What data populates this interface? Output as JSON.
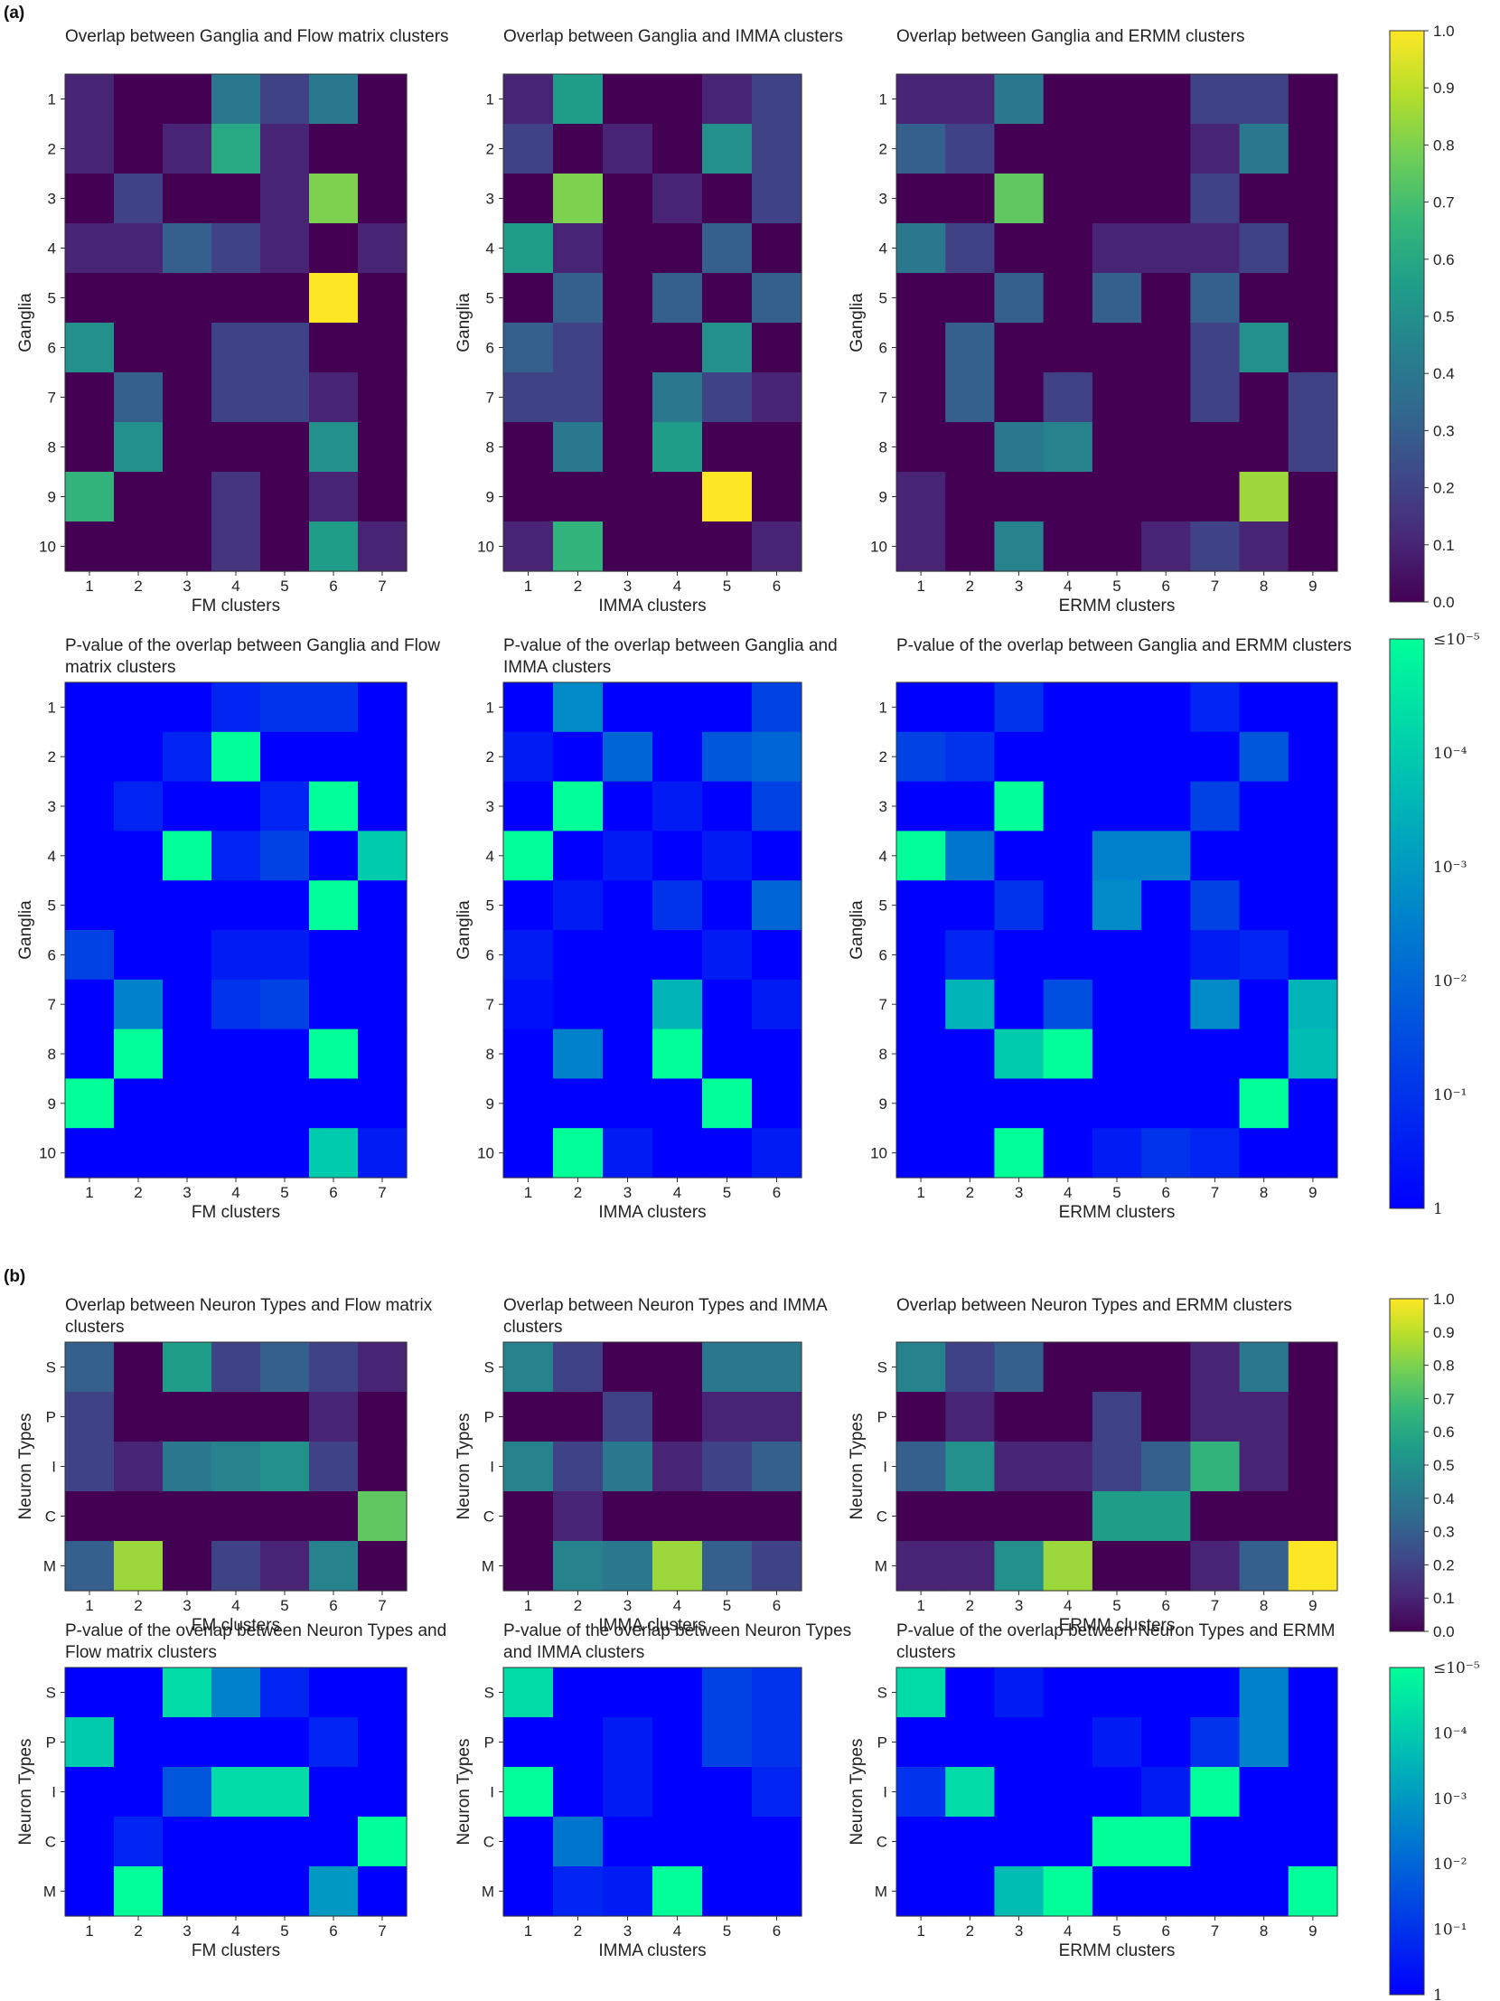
{
  "panel_labels": [
    "(a)",
    "(b)"
  ],
  "colors": {
    "viridis": [
      "#440154",
      "#482878",
      "#3e4989",
      "#31688e",
      "#26828e",
      "#1f9e89",
      "#35b779",
      "#6ece58",
      "#b5de2b",
      "#fde725"
    ],
    "pvalue": [
      "#0000ff",
      "#00ff99"
    ]
  },
  "colorbars": [
    {
      "type": "linear",
      "labels": [
        "1.0",
        "0.9",
        "0.8",
        "0.7",
        "0.6",
        "0.5",
        "0.4",
        "0.3",
        "0.2",
        "0.1",
        "0.0"
      ]
    },
    {
      "type": "pvalue",
      "labels": [
        "≤10⁻⁵",
        "10⁻⁴",
        "10⁻³",
        "10⁻²",
        "10⁻¹",
        "1"
      ]
    },
    {
      "type": "linear",
      "labels": [
        "1.0",
        "0.9",
        "0.8",
        "0.7",
        "0.6",
        "0.5",
        "0.4",
        "0.3",
        "0.2",
        "0.1",
        "0.0"
      ]
    },
    {
      "type": "pvalue",
      "labels": [
        "≤10⁻⁵",
        "10⁻⁴",
        "10⁻³",
        "10⁻²",
        "10⁻¹",
        "1"
      ]
    }
  ],
  "chart_data": [
    {
      "type": "heatmap",
      "title": "Overlap between Ganglia and Flow matrix clusters",
      "xlabel": "FM clusters",
      "ylabel": "Ganglia",
      "colormap": "viridis",
      "vlim": [
        0,
        1
      ],
      "x": [
        "1",
        "2",
        "3",
        "4",
        "5",
        "6",
        "7"
      ],
      "y": [
        "1",
        "2",
        "3",
        "4",
        "5",
        "6",
        "7",
        "8",
        "9",
        "10"
      ],
      "values": [
        [
          0.1,
          0,
          0,
          0.4,
          0.2,
          0.4,
          0
        ],
        [
          0.1,
          0,
          0.1,
          0.6,
          0.1,
          0,
          0
        ],
        [
          0,
          0.2,
          0,
          0,
          0.1,
          0.8,
          0
        ],
        [
          0.1,
          0.1,
          0.3,
          0.2,
          0.1,
          0,
          0.1
        ],
        [
          0,
          0,
          0,
          0,
          0,
          1.0,
          0
        ],
        [
          0.5,
          0,
          0,
          0.2,
          0.2,
          0,
          0
        ],
        [
          0,
          0.3,
          0,
          0.2,
          0.2,
          0.1,
          0
        ],
        [
          0,
          0.5,
          0,
          0,
          0,
          0.5,
          0
        ],
        [
          0.65,
          0,
          0,
          0.15,
          0,
          0.1,
          0
        ],
        [
          0,
          0,
          0,
          0.15,
          0,
          0.55,
          0.1
        ]
      ]
    },
    {
      "type": "heatmap",
      "title": "Overlap between Ganglia and IMMA clusters",
      "xlabel": "IMMA clusters",
      "ylabel": "Ganglia",
      "colormap": "viridis",
      "vlim": [
        0,
        1
      ],
      "x": [
        "1",
        "2",
        "3",
        "4",
        "5",
        "6"
      ],
      "y": [
        "1",
        "2",
        "3",
        "4",
        "5",
        "6",
        "7",
        "8",
        "9",
        "10"
      ],
      "values": [
        [
          0.1,
          0.55,
          0,
          0,
          0.1,
          0.2
        ],
        [
          0.2,
          0,
          0.1,
          0,
          0.5,
          0.2
        ],
        [
          0,
          0.8,
          0,
          0.1,
          0,
          0.2
        ],
        [
          0.55,
          0.1,
          0,
          0,
          0.3,
          0
        ],
        [
          0,
          0.3,
          0,
          0.3,
          0,
          0.3
        ],
        [
          0.3,
          0.2,
          0,
          0,
          0.5,
          0
        ],
        [
          0.2,
          0.2,
          0,
          0.4,
          0.2,
          0.1
        ],
        [
          0,
          0.4,
          0,
          0.55,
          0,
          0
        ],
        [
          0,
          0,
          0,
          0,
          1.0,
          0
        ],
        [
          0.1,
          0.65,
          0,
          0,
          0,
          0.1
        ]
      ]
    },
    {
      "type": "heatmap",
      "title": "Overlap between Ganglia and ERMM clusters",
      "xlabel": "ERMM clusters",
      "ylabel": "Ganglia",
      "colormap": "viridis",
      "vlim": [
        0,
        1
      ],
      "x": [
        "1",
        "2",
        "3",
        "4",
        "5",
        "6",
        "7",
        "8",
        "9"
      ],
      "y": [
        "1",
        "2",
        "3",
        "4",
        "5",
        "6",
        "7",
        "8",
        "9",
        "10"
      ],
      "values": [
        [
          0.1,
          0.1,
          0.4,
          0,
          0,
          0,
          0.2,
          0.2,
          0
        ],
        [
          0.3,
          0.2,
          0,
          0,
          0,
          0,
          0.1,
          0.4,
          0
        ],
        [
          0,
          0,
          0.75,
          0,
          0,
          0,
          0.2,
          0,
          0
        ],
        [
          0.4,
          0.2,
          0,
          0,
          0.1,
          0.1,
          0.1,
          0.2,
          0
        ],
        [
          0,
          0,
          0.3,
          0,
          0.3,
          0,
          0.3,
          0,
          0
        ],
        [
          0,
          0.3,
          0,
          0,
          0,
          0,
          0.2,
          0.5,
          0
        ],
        [
          0,
          0.3,
          0,
          0.2,
          0,
          0,
          0.2,
          0,
          0.2
        ],
        [
          0,
          0,
          0.4,
          0.45,
          0,
          0,
          0,
          0,
          0.2
        ],
        [
          0.1,
          0,
          0,
          0,
          0,
          0,
          0,
          0.85,
          0
        ],
        [
          0.1,
          0,
          0.45,
          0,
          0,
          0.1,
          0.2,
          0.1,
          0
        ]
      ]
    },
    {
      "type": "heatmap",
      "title": "P-value of the overlap between Ganglia and Flow matrix clusters",
      "xlabel": "FM clusters",
      "ylabel": "Ganglia",
      "colormap": "pvalue",
      "scale": "log",
      "vlim": [
        1e-05,
        1
      ],
      "x": [
        "1",
        "2",
        "3",
        "4",
        "5",
        "6",
        "7"
      ],
      "y": [
        "1",
        "2",
        "3",
        "4",
        "5",
        "6",
        "7",
        "8",
        "9",
        "10"
      ],
      "values": [
        [
          1,
          1,
          1,
          0.2,
          0.1,
          0.1,
          1
        ],
        [
          1,
          1,
          0.2,
          1e-05,
          1,
          1,
          1
        ],
        [
          1,
          0.2,
          1,
          1,
          0.2,
          1e-05,
          1
        ],
        [
          1,
          1,
          1e-05,
          0.2,
          0.05,
          1,
          0.0001
        ],
        [
          1,
          1,
          1,
          1,
          1,
          1e-05,
          1
        ],
        [
          0.05,
          1,
          1,
          0.3,
          0.3,
          1,
          1
        ],
        [
          1,
          0.003,
          1,
          0.1,
          0.05,
          1,
          1
        ],
        [
          1,
          1e-05,
          1,
          1,
          1,
          1e-05,
          1
        ],
        [
          1e-05,
          1,
          1,
          1,
          1,
          1,
          1
        ],
        [
          1,
          1,
          1,
          1,
          1,
          0.0001,
          0.3
        ]
      ]
    },
    {
      "type": "heatmap",
      "title": "P-value of the overlap between Ganglia and IMMA clusters",
      "xlabel": "IMMA clusters",
      "ylabel": "Ganglia",
      "colormap": "pvalue",
      "scale": "log",
      "vlim": [
        1e-05,
        1
      ],
      "x": [
        "1",
        "2",
        "3",
        "4",
        "5",
        "6"
      ],
      "y": [
        "1",
        "2",
        "3",
        "4",
        "5",
        "6",
        "7",
        "8",
        "9",
        "10"
      ],
      "values": [
        [
          1,
          0.002,
          1,
          1,
          1,
          0.05
        ],
        [
          0.3,
          1,
          0.01,
          1,
          0.02,
          0.01
        ],
        [
          1,
          1e-05,
          1,
          0.3,
          1,
          0.05
        ],
        [
          1e-05,
          1,
          0.3,
          1,
          0.3,
          1
        ],
        [
          1,
          0.3,
          1,
          0.1,
          1,
          0.01
        ],
        [
          0.3,
          1,
          1,
          1,
          0.3,
          1
        ],
        [
          0.5,
          1,
          1,
          0.0003,
          1,
          0.3
        ],
        [
          1,
          0.003,
          1,
          1e-05,
          1,
          1
        ],
        [
          1,
          1,
          1,
          1,
          1e-05,
          1
        ],
        [
          1,
          1e-05,
          0.3,
          1,
          1,
          0.3
        ]
      ]
    },
    {
      "type": "heatmap",
      "title": "P-value of the overlap between Ganglia and ERMM clusters",
      "xlabel": "ERMM clusters",
      "ylabel": "Ganglia",
      "colormap": "pvalue",
      "scale": "log",
      "vlim": [
        1e-05,
        1
      ],
      "x": [
        "1",
        "2",
        "3",
        "4",
        "5",
        "6",
        "7",
        "8",
        "9"
      ],
      "y": [
        "1",
        "2",
        "3",
        "4",
        "5",
        "6",
        "7",
        "8",
        "9",
        "10"
      ],
      "values": [
        [
          1,
          1,
          0.1,
          1,
          1,
          1,
          0.2,
          1,
          1
        ],
        [
          0.05,
          0.1,
          1,
          1,
          1,
          1,
          1,
          0.02,
          1
        ],
        [
          1,
          1,
          1e-05,
          1,
          1,
          1,
          0.05,
          1,
          1
        ],
        [
          1e-05,
          0.005,
          1,
          1,
          0.003,
          0.003,
          1,
          1,
          1
        ],
        [
          1,
          1,
          0.1,
          1,
          0.002,
          1,
          0.05,
          1,
          1
        ],
        [
          1,
          0.2,
          1,
          1,
          1,
          1,
          0.3,
          0.2,
          1
        ],
        [
          1,
          0.0003,
          1,
          0.03,
          1,
          1,
          0.002,
          1,
          0.0003
        ],
        [
          1,
          1,
          0.0001,
          1e-05,
          1,
          1,
          1,
          1,
          0.0002
        ],
        [
          1,
          1,
          1,
          1,
          1,
          1,
          1,
          1e-05,
          1
        ],
        [
          1,
          1,
          1e-05,
          1,
          0.3,
          0.1,
          0.2,
          1,
          1
        ]
      ]
    },
    {
      "type": "heatmap",
      "title": "Overlap between Neuron Types and Flow matrix clusters",
      "xlabel": "FM clusters",
      "ylabel": "Neuron Types",
      "colormap": "viridis",
      "vlim": [
        0,
        1
      ],
      "x": [
        "1",
        "2",
        "3",
        "4",
        "5",
        "6",
        "7"
      ],
      "y": [
        "S",
        "P",
        "I",
        "C",
        "M"
      ],
      "values": [
        [
          0.3,
          0,
          0.55,
          0.2,
          0.3,
          0.2,
          0.1
        ],
        [
          0.2,
          0,
          0,
          0,
          0,
          0.1,
          0
        ],
        [
          0.2,
          0.1,
          0.4,
          0.45,
          0.5,
          0.2,
          0
        ],
        [
          0,
          0,
          0,
          0,
          0,
          0,
          0.75
        ],
        [
          0.3,
          0.85,
          0,
          0.2,
          0.1,
          0.45,
          0
        ]
      ]
    },
    {
      "type": "heatmap",
      "title": "Overlap between Neuron Types and IMMA clusters",
      "xlabel": "IMMA clusters",
      "ylabel": "Neuron Types",
      "colormap": "viridis",
      "vlim": [
        0,
        1
      ],
      "x": [
        "1",
        "2",
        "3",
        "4",
        "5",
        "6"
      ],
      "y": [
        "S",
        "P",
        "I",
        "C",
        "M"
      ],
      "values": [
        [
          0.45,
          0.2,
          0,
          0,
          0.4,
          0.4
        ],
        [
          0,
          0,
          0.2,
          0,
          0.1,
          0.1
        ],
        [
          0.45,
          0.2,
          0.4,
          0.1,
          0.2,
          0.3
        ],
        [
          0,
          0.1,
          0,
          0,
          0,
          0
        ],
        [
          0,
          0.45,
          0.4,
          0.85,
          0.3,
          0.2
        ]
      ]
    },
    {
      "type": "heatmap",
      "title": "Overlap between Neuron Types and ERMM clusters",
      "xlabel": "ERMM clusters",
      "ylabel": "Neuron Types",
      "colormap": "viridis",
      "vlim": [
        0,
        1
      ],
      "x": [
        "1",
        "2",
        "3",
        "4",
        "5",
        "6",
        "7",
        "8",
        "9"
      ],
      "y": [
        "S",
        "P",
        "I",
        "C",
        "M"
      ],
      "values": [
        [
          0.45,
          0.2,
          0.3,
          0,
          0,
          0,
          0.1,
          0.4,
          0
        ],
        [
          0,
          0.1,
          0,
          0,
          0.2,
          0,
          0.1,
          0.1,
          0
        ],
        [
          0.3,
          0.5,
          0.1,
          0.1,
          0.2,
          0.3,
          0.65,
          0.1,
          0
        ],
        [
          0,
          0,
          0,
          0,
          0.55,
          0.55,
          0,
          0,
          0
        ],
        [
          0.1,
          0.1,
          0.5,
          0.85,
          0,
          0,
          0.1,
          0.3,
          1.0
        ]
      ]
    },
    {
      "type": "heatmap",
      "title": "P-value of the overlap between Neuron Types and Flow matrix clusters",
      "xlabel": "FM clusters",
      "ylabel": "Neuron Types",
      "colormap": "pvalue",
      "scale": "log",
      "vlim": [
        1e-05,
        1
      ],
      "x": [
        "1",
        "2",
        "3",
        "4",
        "5",
        "6",
        "7"
      ],
      "y": [
        "S",
        "P",
        "I",
        "C",
        "M"
      ],
      "values": [
        [
          1,
          1,
          5e-05,
          0.003,
          0.2,
          1,
          1
        ],
        [
          0.0001,
          1,
          1,
          1,
          1,
          0.2,
          1
        ],
        [
          1,
          1,
          0.02,
          5e-05,
          5e-05,
          1,
          1
        ],
        [
          1,
          0.2,
          1,
          1,
          1,
          1,
          1e-05
        ],
        [
          1,
          1e-05,
          1,
          1,
          1,
          0.001,
          1
        ]
      ]
    },
    {
      "type": "heatmap",
      "title": "P-value of the overlap between Neuron Types and IMMA clusters",
      "xlabel": "IMMA clusters",
      "ylabel": "Neuron Types",
      "colormap": "pvalue",
      "scale": "log",
      "vlim": [
        1e-05,
        1
      ],
      "x": [
        "1",
        "2",
        "3",
        "4",
        "5",
        "6"
      ],
      "y": [
        "S",
        "P",
        "I",
        "C",
        "M"
      ],
      "values": [
        [
          5e-05,
          1,
          1,
          1,
          0.05,
          0.1
        ],
        [
          1,
          1,
          0.3,
          1,
          0.05,
          0.1
        ],
        [
          1e-05,
          1,
          0.3,
          1,
          1,
          0.2
        ],
        [
          1,
          0.005,
          1,
          1,
          1,
          1
        ],
        [
          1,
          0.2,
          0.3,
          1e-05,
          1,
          1
        ]
      ]
    },
    {
      "type": "heatmap",
      "title": "P-value of the overlap between Neuron Types and ERMM clusters",
      "xlabel": "ERMM clusters",
      "ylabel": "Neuron Types",
      "colormap": "pvalue",
      "scale": "log",
      "vlim": [
        1e-05,
        1
      ],
      "x": [
        "1",
        "2",
        "3",
        "4",
        "5",
        "6",
        "7",
        "8",
        "9"
      ],
      "y": [
        "S",
        "P",
        "I",
        "C",
        "M"
      ],
      "values": [
        [
          5e-05,
          1,
          0.3,
          1,
          1,
          1,
          1,
          0.003,
          1
        ],
        [
          1,
          1,
          1,
          1,
          0.3,
          1,
          0.1,
          0.003,
          1
        ],
        [
          0.1,
          5e-05,
          1,
          1,
          1,
          0.3,
          1e-05,
          1,
          1
        ],
        [
          1,
          1,
          1,
          1,
          1e-05,
          1e-05,
          1,
          1,
          1
        ],
        [
          1,
          1,
          0.0002,
          1e-05,
          1,
          1,
          1,
          1,
          1e-05
        ]
      ]
    }
  ]
}
